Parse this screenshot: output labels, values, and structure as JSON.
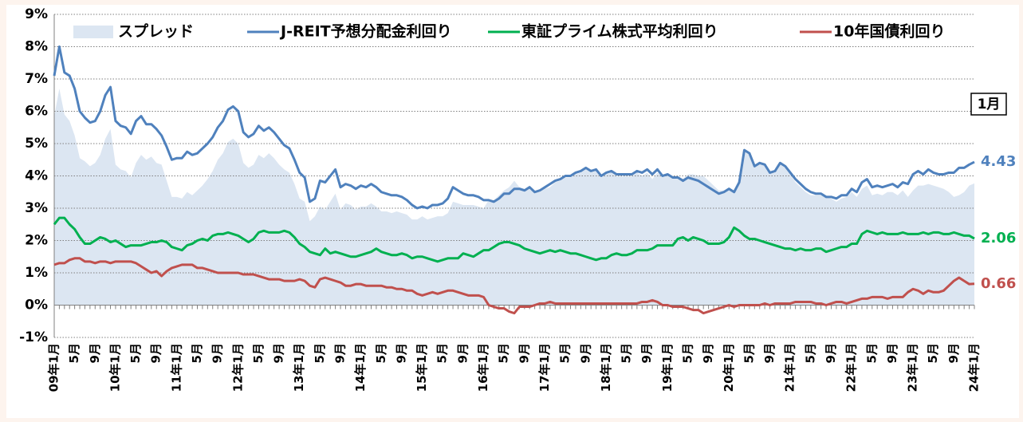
{
  "chart_data": {
    "type": "line",
    "annotation": "1月",
    "categories": [
      "09年1月",
      null,
      null,
      null,
      "5月",
      null,
      null,
      null,
      "9月",
      null,
      null,
      null,
      "10年1月",
      null,
      null,
      null,
      "5月",
      null,
      null,
      null,
      "9月",
      null,
      null,
      null,
      "11年1月",
      null,
      null,
      null,
      "5月",
      null,
      null,
      null,
      "9月",
      null,
      null,
      null,
      "12年1月",
      null,
      null,
      null,
      "5月",
      null,
      null,
      null,
      "9月",
      null,
      null,
      null,
      "13年1月",
      null,
      null,
      null,
      "5月",
      null,
      null,
      null,
      "9月",
      null,
      null,
      null,
      "14年1月",
      null,
      null,
      null,
      "5月",
      null,
      null,
      null,
      "9月",
      null,
      null,
      null,
      "15年1月",
      null,
      null,
      null,
      "5月",
      null,
      null,
      null,
      "9月",
      null,
      null,
      null,
      "16年1月",
      null,
      null,
      null,
      "5月",
      null,
      null,
      null,
      "9月",
      null,
      null,
      null,
      "17年1月",
      null,
      null,
      null,
      "5月",
      null,
      null,
      null,
      "9月",
      null,
      null,
      null,
      "18年1月",
      null,
      null,
      null,
      "5月",
      null,
      null,
      null,
      "9月",
      null,
      null,
      null,
      "19年1月",
      null,
      null,
      null,
      "5月",
      null,
      null,
      null,
      "9月",
      null,
      null,
      null,
      "20年1月",
      null,
      null,
      null,
      "5月",
      null,
      null,
      null,
      "9月",
      null,
      null,
      null,
      "21年1月",
      null,
      null,
      null,
      "5月",
      null,
      null,
      null,
      "9月",
      null,
      null,
      null,
      "22年1月",
      null,
      null,
      null,
      "5月",
      null,
      null,
      null,
      "9月",
      null,
      null,
      null,
      "23年1月",
      null,
      null,
      null,
      "5月",
      null,
      null,
      null,
      "9月",
      null,
      null,
      null,
      "24年1月"
    ],
    "ylim": [
      -1,
      9
    ],
    "yticks": [
      {
        "value": -1,
        "label": "-1%"
      },
      {
        "value": 0,
        "label": "0%"
      },
      {
        "value": 1,
        "label": "1%"
      },
      {
        "value": 2,
        "label": "2%"
      },
      {
        "value": 3,
        "label": "3%"
      },
      {
        "value": 4,
        "label": "4%"
      },
      {
        "value": 5,
        "label": "5%"
      },
      {
        "value": 6,
        "label": "6%"
      },
      {
        "value": 7,
        "label": "7%"
      },
      {
        "value": 8,
        "label": "8%"
      },
      {
        "value": 9,
        "label": "9%"
      }
    ],
    "grid": true,
    "legend": "top",
    "series": [
      {
        "name": "スプレッド",
        "kind": "area",
        "color": "#dce6f2",
        "values": [
          5.85,
          6.7,
          5.9,
          5.7,
          5.25,
          4.55,
          4.45,
          4.3,
          4.4,
          4.65,
          5.15,
          5.45,
          4.35,
          4.2,
          4.15,
          3.95,
          4.4,
          4.65,
          4.5,
          4.6,
          4.4,
          4.35,
          3.85,
          3.35,
          3.35,
          3.3,
          3.5,
          3.4,
          3.55,
          3.7,
          3.9,
          4.15,
          4.5,
          4.7,
          5.05,
          5.15,
          5.0,
          4.4,
          4.25,
          4.35,
          4.65,
          4.55,
          4.7,
          4.55,
          4.35,
          4.2,
          4.1,
          3.75,
          3.3,
          3.2,
          2.6,
          2.75,
          3.05,
          2.95,
          3.2,
          3.45,
          2.95,
          3.15,
          3.1,
          2.95,
          3.05,
          3.05,
          3.15,
          3.05,
          2.9,
          2.9,
          2.85,
          2.9,
          2.85,
          2.8,
          2.65,
          2.65,
          2.75,
          2.65,
          2.7,
          2.75,
          2.75,
          2.85,
          3.2,
          3.15,
          3.1,
          3.1,
          3.1,
          3.05,
          3.0,
          3.25,
          3.25,
          3.4,
          3.55,
          3.65,
          3.85,
          3.65,
          3.6,
          3.7,
          3.5,
          3.5,
          3.6,
          3.65,
          3.8,
          3.85,
          3.95,
          3.95,
          4.05,
          4.1,
          4.2,
          4.1,
          4.15,
          3.95,
          4.05,
          4.1,
          4.0,
          4.0,
          4.0,
          4.0,
          4.1,
          4.0,
          4.1,
          3.9,
          4.1,
          4.0,
          4.05,
          4.0,
          4.0,
          3.9,
          4.05,
          4.05,
          4.0,
          4.0,
          3.85,
          3.7,
          3.55,
          3.55,
          3.6,
          3.55,
          3.8,
          4.8,
          4.7,
          4.3,
          4.4,
          4.3,
          4.1,
          4.1,
          4.35,
          4.25,
          4.05,
          3.8,
          3.65,
          3.5,
          3.4,
          3.4,
          3.4,
          3.35,
          3.3,
          3.2,
          3.3,
          3.35,
          3.5,
          3.35,
          3.6,
          3.7,
          3.4,
          3.45,
          3.4,
          3.5,
          3.5,
          3.4,
          3.55,
          3.35,
          3.55,
          3.7,
          3.7,
          3.75,
          3.7,
          3.65,
          3.6,
          3.5,
          3.35,
          3.4,
          3.5,
          3.7,
          3.77
        ]
      },
      {
        "name": "J-REIT予想分配金利回り",
        "kind": "line",
        "color": "#4f81bd",
        "value_label": "4.43",
        "values": [
          7.1,
          8.0,
          7.2,
          7.1,
          6.7,
          6.0,
          5.8,
          5.65,
          5.7,
          6.0,
          6.5,
          6.75,
          5.7,
          5.55,
          5.5,
          5.3,
          5.7,
          5.85,
          5.6,
          5.6,
          5.45,
          5.25,
          4.9,
          4.5,
          4.55,
          4.55,
          4.75,
          4.65,
          4.7,
          4.85,
          5.0,
          5.2,
          5.5,
          5.7,
          6.05,
          6.15,
          6.0,
          5.35,
          5.2,
          5.3,
          5.55,
          5.4,
          5.5,
          5.35,
          5.15,
          4.95,
          4.85,
          4.5,
          4.1,
          3.95,
          3.2,
          3.3,
          3.85,
          3.8,
          4.0,
          4.2,
          3.65,
          3.75,
          3.7,
          3.6,
          3.7,
          3.65,
          3.75,
          3.65,
          3.5,
          3.45,
          3.4,
          3.4,
          3.35,
          3.25,
          3.1,
          3.0,
          3.05,
          3.0,
          3.1,
          3.1,
          3.15,
          3.3,
          3.65,
          3.55,
          3.45,
          3.4,
          3.4,
          3.35,
          3.25,
          3.25,
          3.2,
          3.3,
          3.45,
          3.45,
          3.6,
          3.6,
          3.55,
          3.65,
          3.5,
          3.55,
          3.65,
          3.75,
          3.85,
          3.9,
          4.0,
          4.0,
          4.1,
          4.15,
          4.25,
          4.15,
          4.2,
          4.0,
          4.1,
          4.15,
          4.05,
          4.05,
          4.05,
          4.05,
          4.15,
          4.1,
          4.2,
          4.05,
          4.2,
          4.0,
          4.05,
          3.95,
          3.95,
          3.85,
          3.95,
          3.9,
          3.85,
          3.75,
          3.65,
          3.55,
          3.45,
          3.5,
          3.6,
          3.5,
          3.8,
          4.8,
          4.7,
          4.3,
          4.4,
          4.35,
          4.1,
          4.15,
          4.4,
          4.3,
          4.1,
          3.9,
          3.75,
          3.6,
          3.5,
          3.45,
          3.45,
          3.35,
          3.35,
          3.3,
          3.4,
          3.4,
          3.6,
          3.5,
          3.8,
          3.9,
          3.65,
          3.7,
          3.65,
          3.7,
          3.75,
          3.65,
          3.8,
          3.75,
          4.05,
          4.15,
          4.05,
          4.2,
          4.1,
          4.05,
          4.05,
          4.1,
          4.1,
          4.25,
          4.25,
          4.35,
          4.43
        ]
      },
      {
        "name": "東証プライム株式平均利回り",
        "kind": "line",
        "color": "#00b050",
        "value_label": "2.06",
        "values": [
          2.5,
          2.7,
          2.7,
          2.5,
          2.35,
          2.1,
          1.9,
          1.9,
          2.0,
          2.1,
          2.05,
          1.95,
          2.0,
          1.9,
          1.8,
          1.85,
          1.85,
          1.85,
          1.9,
          1.95,
          1.95,
          2.0,
          1.95,
          1.8,
          1.75,
          1.7,
          1.85,
          1.9,
          2.0,
          2.05,
          2.0,
          2.15,
          2.2,
          2.2,
          2.25,
          2.2,
          2.15,
          2.05,
          1.95,
          2.05,
          2.25,
          2.3,
          2.25,
          2.25,
          2.25,
          2.3,
          2.25,
          2.1,
          1.9,
          1.8,
          1.65,
          1.6,
          1.55,
          1.75,
          1.6,
          1.65,
          1.6,
          1.55,
          1.5,
          1.5,
          1.55,
          1.6,
          1.65,
          1.75,
          1.65,
          1.6,
          1.55,
          1.55,
          1.6,
          1.55,
          1.45,
          1.5,
          1.5,
          1.45,
          1.4,
          1.35,
          1.4,
          1.45,
          1.45,
          1.45,
          1.6,
          1.55,
          1.5,
          1.6,
          1.7,
          1.7,
          1.8,
          1.9,
          1.95,
          1.95,
          1.9,
          1.85,
          1.75,
          1.7,
          1.65,
          1.6,
          1.65,
          1.7,
          1.65,
          1.7,
          1.65,
          1.6,
          1.6,
          1.55,
          1.5,
          1.45,
          1.4,
          1.45,
          1.45,
          1.55,
          1.6,
          1.55,
          1.55,
          1.6,
          1.7,
          1.7,
          1.7,
          1.75,
          1.85,
          1.85,
          1.85,
          1.85,
          2.05,
          2.1,
          2.0,
          2.1,
          2.05,
          2.0,
          1.9,
          1.9,
          1.9,
          1.95,
          2.1,
          2.4,
          2.3,
          2.15,
          2.05,
          2.05,
          2.0,
          1.95,
          1.9,
          1.85,
          1.8,
          1.75,
          1.75,
          1.7,
          1.75,
          1.7,
          1.7,
          1.75,
          1.75,
          1.65,
          1.7,
          1.75,
          1.8,
          1.8,
          1.9,
          1.9,
          2.2,
          2.3,
          2.25,
          2.2,
          2.25,
          2.2,
          2.2,
          2.2,
          2.25,
          2.2,
          2.2,
          2.2,
          2.25,
          2.2,
          2.25,
          2.25,
          2.2,
          2.2,
          2.25,
          2.2,
          2.15,
          2.15,
          2.06
        ]
      },
      {
        "name": "10年国債利回り",
        "kind": "line",
        "color": "#c0504d",
        "value_label": "0.66",
        "values": [
          1.25,
          1.3,
          1.3,
          1.4,
          1.45,
          1.45,
          1.35,
          1.35,
          1.3,
          1.35,
          1.35,
          1.3,
          1.35,
          1.35,
          1.35,
          1.35,
          1.3,
          1.2,
          1.1,
          1.0,
          1.05,
          0.9,
          1.05,
          1.15,
          1.2,
          1.25,
          1.25,
          1.25,
          1.15,
          1.15,
          1.1,
          1.05,
          1.0,
          1.0,
          1.0,
          1.0,
          1.0,
          0.95,
          0.95,
          0.95,
          0.9,
          0.85,
          0.8,
          0.8,
          0.8,
          0.75,
          0.75,
          0.75,
          0.8,
          0.75,
          0.6,
          0.55,
          0.8,
          0.85,
          0.8,
          0.75,
          0.7,
          0.6,
          0.6,
          0.65,
          0.65,
          0.6,
          0.6,
          0.6,
          0.6,
          0.55,
          0.55,
          0.5,
          0.5,
          0.45,
          0.45,
          0.35,
          0.3,
          0.35,
          0.4,
          0.35,
          0.4,
          0.45,
          0.45,
          0.4,
          0.35,
          0.3,
          0.3,
          0.3,
          0.25,
          0.0,
          -0.05,
          -0.1,
          -0.1,
          -0.2,
          -0.25,
          -0.05,
          -0.05,
          -0.05,
          0.0,
          0.05,
          0.05,
          0.1,
          0.05,
          0.05,
          0.05,
          0.05,
          0.05,
          0.05,
          0.05,
          0.05,
          0.05,
          0.05,
          0.05,
          0.05,
          0.05,
          0.05,
          0.05,
          0.05,
          0.05,
          0.1,
          0.1,
          0.15,
          0.1,
          0.0,
          0.0,
          -0.05,
          -0.05,
          -0.05,
          -0.1,
          -0.15,
          -0.15,
          -0.25,
          -0.2,
          -0.15,
          -0.1,
          -0.05,
          0.0,
          -0.05,
          0.0,
          0.0,
          0.0,
          0.0,
          0.0,
          0.05,
          0.0,
          0.05,
          0.05,
          0.05,
          0.05,
          0.1,
          0.1,
          0.1,
          0.1,
          0.05,
          0.05,
          0.0,
          0.05,
          0.1,
          0.1,
          0.05,
          0.1,
          0.15,
          0.2,
          0.2,
          0.25,
          0.25,
          0.25,
          0.2,
          0.25,
          0.25,
          0.25,
          0.4,
          0.5,
          0.45,
          0.35,
          0.45,
          0.4,
          0.4,
          0.45,
          0.6,
          0.75,
          0.85,
          0.75,
          0.65,
          0.66
        ]
      }
    ]
  }
}
